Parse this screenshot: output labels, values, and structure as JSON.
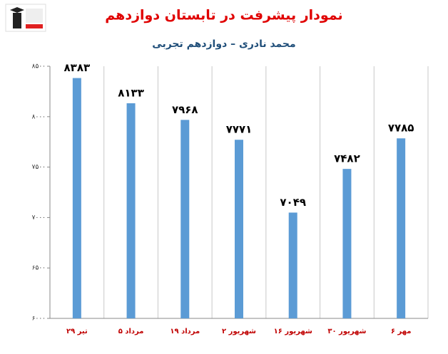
{
  "chart_data": {
    "type": "bar",
    "title": "نمودار پیشرفت در تابستان دوازدهم",
    "subtitle": "محمد نادری – دوازدهم تجربی",
    "categories": [
      "۲۹ تیر",
      "۵ مرداد",
      "۱۹ مرداد",
      "۲ شهریور",
      "۱۶ شهریور",
      "۳۰ شهریور",
      "۶ مهر"
    ],
    "values": [
      8383,
      8133,
      7968,
      7771,
      7049,
      7482,
      7785
    ],
    "value_labels": [
      "۸۳۸۳",
      "۸۱۳۳",
      "۷۹۶۸",
      "۷۷۷۱",
      "۷۰۴۹",
      "۷۴۸۲",
      "۷۷۸۵"
    ],
    "color": "#5b9bd5",
    "ylim": [
      6000,
      8500
    ],
    "yticks": [
      {
        "value": 6000,
        "label": "۶۰۰۰"
      },
      {
        "value": 6500,
        "label": "۶۵۰۰"
      },
      {
        "value": 7000,
        "label": "۷۰۰۰"
      },
      {
        "value": 7500,
        "label": "۷۵۰۰"
      },
      {
        "value": 8000,
        "label": "۸۰۰۰"
      },
      {
        "value": 8500,
        "label": "۸۵۰۰"
      }
    ],
    "grid": true
  }
}
